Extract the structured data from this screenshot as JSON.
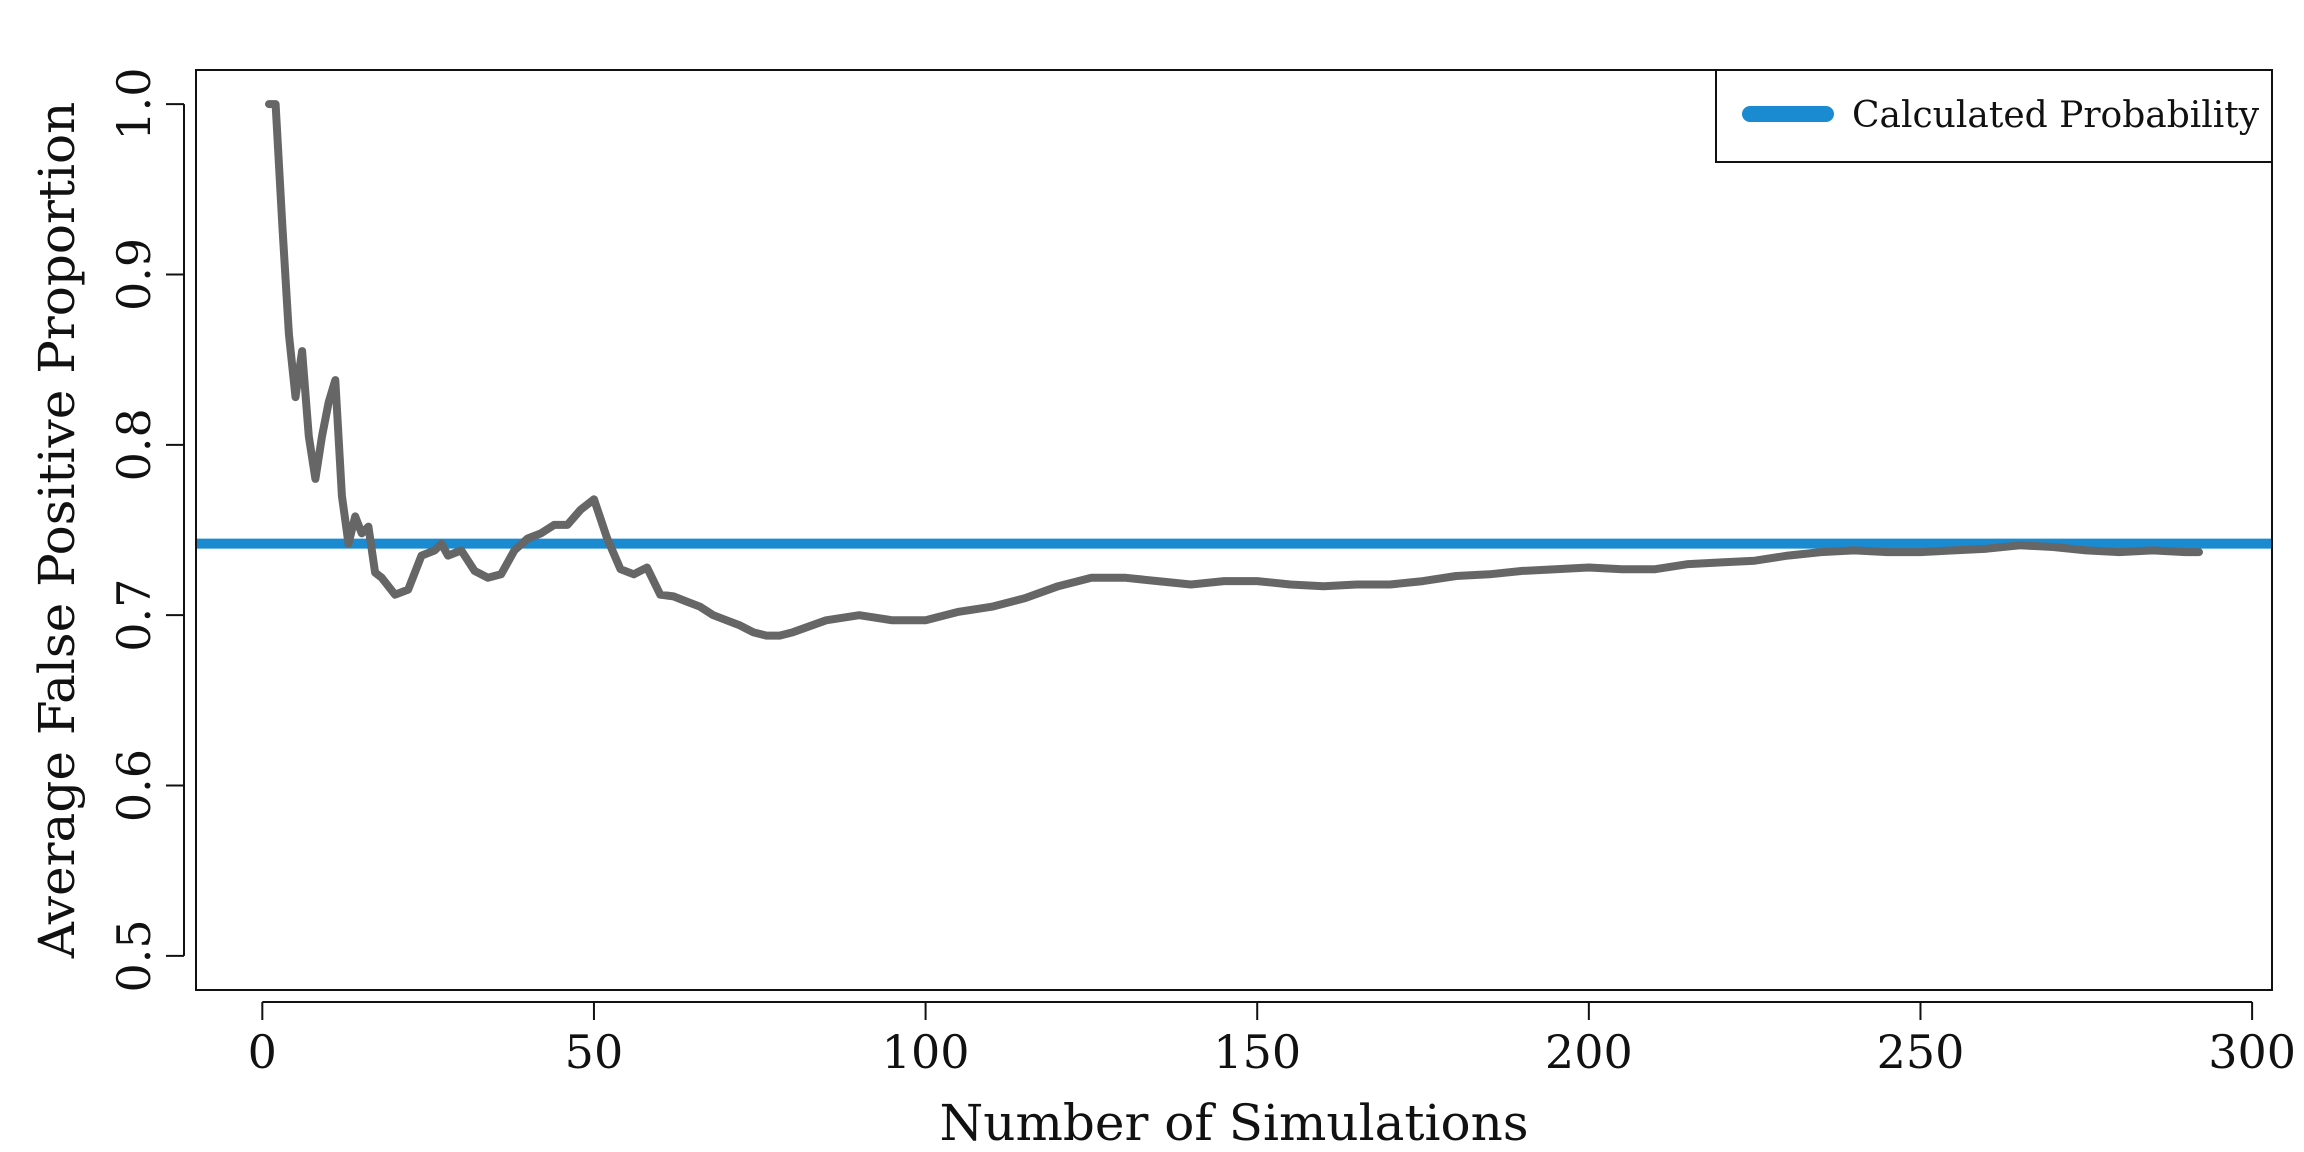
{
  "chart_data": {
    "type": "line",
    "title": "",
    "xlabel": "Number of Simulations",
    "ylabel": "Average False Positive Proportion",
    "xlim": [
      -10,
      303
    ],
    "ylim": [
      0.48,
      1.02
    ],
    "xticks": [
      0,
      50,
      100,
      150,
      200,
      250,
      300
    ],
    "xtick_labels": [
      "0",
      "50",
      "100",
      "150",
      "200",
      "250",
      "300"
    ],
    "yticks": [
      0.5,
      0.6,
      0.7,
      0.8,
      0.9,
      1.0
    ],
    "ytick_labels": [
      "0.5",
      "0.6",
      "0.7",
      "0.8",
      "0.9",
      "1.0"
    ],
    "grid": false,
    "legend_position": "top-right",
    "series": [
      {
        "color": "#666666",
        "x": [
          1,
          2,
          3,
          4,
          5,
          6,
          7,
          8,
          9,
          10,
          11,
          12,
          13,
          14,
          15,
          16,
          17,
          18,
          20,
          22,
          24,
          26,
          27,
          28,
          30,
          32,
          34,
          36,
          38,
          40,
          42,
          44,
          46,
          48,
          50,
          52,
          54,
          56,
          58,
          60,
          62,
          64,
          66,
          68,
          70,
          72,
          74,
          76,
          78,
          80,
          85,
          90,
          95,
          100,
          105,
          110,
          115,
          120,
          125,
          130,
          135,
          140,
          145,
          150,
          155,
          160,
          165,
          170,
          175,
          180,
          185,
          190,
          195,
          200,
          205,
          210,
          215,
          220,
          225,
          230,
          235,
          240,
          245,
          250,
          255,
          260,
          265,
          270,
          275,
          280,
          285,
          290,
          292
        ],
        "values": [
          1.0,
          1.0,
          0.93,
          0.865,
          0.828,
          0.855,
          0.805,
          0.78,
          0.805,
          0.825,
          0.838,
          0.77,
          0.742,
          0.758,
          0.748,
          0.752,
          0.725,
          0.722,
          0.712,
          0.715,
          0.735,
          0.738,
          0.742,
          0.735,
          0.738,
          0.726,
          0.722,
          0.724,
          0.738,
          0.745,
          0.748,
          0.753,
          0.753,
          0.762,
          0.768,
          0.745,
          0.727,
          0.724,
          0.728,
          0.712,
          0.711,
          0.708,
          0.705,
          0.7,
          0.697,
          0.694,
          0.69,
          0.688,
          0.688,
          0.69,
          0.697,
          0.7,
          0.697,
          0.697,
          0.702,
          0.705,
          0.71,
          0.717,
          0.722,
          0.722,
          0.72,
          0.718,
          0.72,
          0.72,
          0.718,
          0.717,
          0.718,
          0.718,
          0.72,
          0.723,
          0.724,
          0.726,
          0.727,
          0.728,
          0.727,
          0.727,
          0.73,
          0.731,
          0.732,
          0.735,
          0.737,
          0.738,
          0.737,
          0.737,
          0.738,
          0.739,
          0.741,
          0.74,
          0.738,
          0.737,
          0.738,
          0.737,
          0.737
        ]
      }
    ],
    "reference_lines": [
      {
        "name": "Calculated Probability",
        "y": 0.742,
        "color": "#1a8ad1"
      }
    ]
  }
}
